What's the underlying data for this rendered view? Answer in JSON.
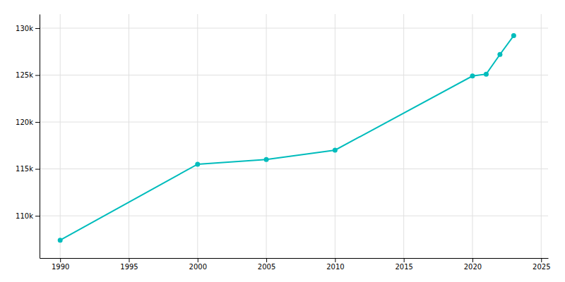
{
  "chart_data": {
    "type": "line",
    "x": [
      1990,
      2000,
      2005,
      2010,
      2020,
      2021,
      2022,
      2023
    ],
    "values": [
      107400,
      115500,
      116000,
      117000,
      124900,
      125100,
      127200,
      129200
    ],
    "color": "#00BCBC",
    "marker": "circle",
    "xlim": [
      1988.5,
      2025.5
    ],
    "ylim": [
      105500,
      131500
    ],
    "xticks": [
      1990,
      1995,
      2000,
      2005,
      2010,
      2015,
      2020,
      2025
    ],
    "yticks": [
      {
        "value": 110000,
        "label": "110k"
      },
      {
        "value": 115000,
        "label": "115k"
      },
      {
        "value": 120000,
        "label": "120k"
      },
      {
        "value": 125000,
        "label": "125k"
      },
      {
        "value": 130000,
        "label": "130k"
      }
    ],
    "grid": true
  }
}
